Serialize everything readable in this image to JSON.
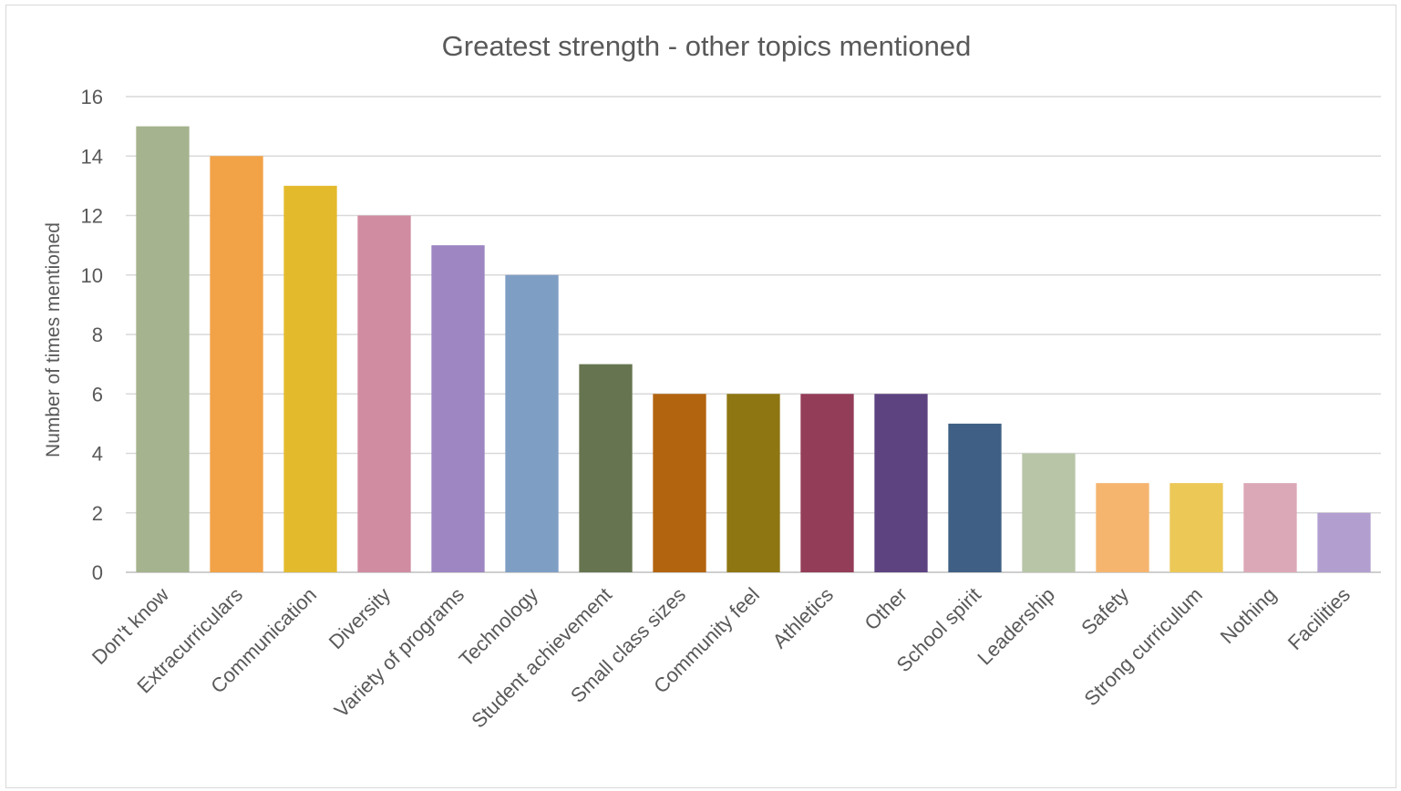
{
  "chart_data": {
    "type": "bar",
    "title": "Greatest strength - other topics mentioned",
    "xlabel": "",
    "ylabel": "Number of times mentioned",
    "ylim": [
      0,
      16
    ],
    "yticks": [
      0,
      2,
      4,
      6,
      8,
      10,
      12,
      14,
      16
    ],
    "grid": true,
    "legend": "none",
    "categories": [
      "Don't know",
      "Extracurriculars",
      "Communication",
      "Diversity",
      "Variety of programs",
      "Technology",
      "Student achievement",
      "Small class sizes",
      "Community feel",
      "Athletics",
      "Other",
      "School spirit",
      "Leadership",
      "Safety",
      "Strong curriculum",
      "Nothing",
      "Facilities"
    ],
    "values": [
      15,
      14,
      13,
      12,
      11,
      10,
      7,
      6,
      6,
      6,
      6,
      5,
      4,
      3,
      3,
      3,
      2
    ],
    "colors": [
      "#a5b38e",
      "#f2a247",
      "#e4ba2d",
      "#d08ca1",
      "#9d86c2",
      "#7f9ec4",
      "#66754f",
      "#b3640f",
      "#8e7612",
      "#943d58",
      "#5e4381",
      "#3f6084",
      "#b8c5a7",
      "#f5b56f",
      "#ecc857",
      "#dba8b7",
      "#b29fd0"
    ]
  }
}
